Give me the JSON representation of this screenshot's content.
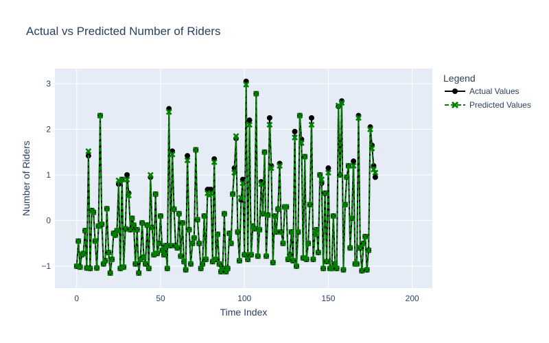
{
  "chart_data": {
    "type": "line",
    "title": "Actual vs Predicted Number of Riders",
    "xlabel": "Time Index",
    "ylabel": "Number of Riders",
    "xlim": [
      -13,
      212
    ],
    "ylim": [
      -1.48,
      3.33
    ],
    "x_ticks": [
      0,
      50,
      100,
      150,
      200
    ],
    "y_ticks": [
      -1,
      0,
      1,
      2,
      3
    ],
    "grid": true,
    "legend": {
      "title": "Legend",
      "position": "right"
    },
    "colors": {
      "plot_bg": "#e5ecf6",
      "grid": "#ffffff",
      "actual": "#000000",
      "predicted": "#008000",
      "text": "#2a3f5f"
    },
    "series": [
      {
        "name": "Actual Values",
        "style": "solid-circle",
        "values": [
          -1.0,
          -0.45,
          -1.02,
          -0.75,
          -0.72,
          -0.22,
          -1.04,
          1.42,
          -1.05,
          0.22,
          0.18,
          -0.45,
          -1.04,
          -0.12,
          2.3,
          -0.08,
          -0.95,
          -0.88,
          0.26,
          -0.7,
          -1.15,
          -0.85,
          -0.28,
          -0.32,
          -0.22,
          0.8,
          -1.05,
          0.9,
          -1.02,
          -0.18,
          1.0,
          0.6,
          -0.2,
          0.05,
          -0.1,
          -0.95,
          -0.2,
          -1.15,
          -0.85,
          -0.05,
          -0.8,
          -0.95,
          -0.1,
          -1.05,
          0.95,
          -0.15,
          -0.75,
          0.58,
          -0.72,
          -0.5,
          0.1,
          -0.65,
          -0.75,
          -0.55,
          -1.05,
          2.45,
          -0.55,
          1.52,
          0.25,
          -0.55,
          -0.6,
          0.15,
          -0.78,
          -0.05,
          -0.9,
          -1.08,
          1.42,
          -0.2,
          -0.95,
          -0.5,
          -0.38,
          1.55,
          0.02,
          -0.5,
          -1.05,
          -0.95,
          0.1,
          -0.85,
          0.68,
          0.68,
          0.68,
          -0.9,
          1.35,
          -0.85,
          -0.3,
          -0.95,
          -1.12,
          -1.05,
          0.15,
          -1.12,
          -1.05,
          -0.28,
          -0.5,
          0.58,
          1.15,
          1.8,
          -0.25,
          -0.88,
          0.45,
          0.9,
          -0.75,
          3.05,
          -0.85,
          2.2,
          -0.75,
          -0.12,
          -0.18,
          2.78,
          -0.78,
          -0.2,
          0.85,
          0.15,
          1.5,
          -0.78,
          0.12,
          2.25,
          1.2,
          -0.92,
          0.1,
          -0.25,
          0.25,
          1.25,
          -0.25,
          -0.5,
          0.3,
          0.3,
          -0.85,
          -0.75,
          -0.25,
          -0.88,
          1.95,
          -1.0,
          -0.25,
          2.3,
          1.78,
          -0.82,
          1.4,
          -0.85,
          -0.5,
          0.35,
          2.25,
          -0.85,
          -0.3,
          -0.2,
          -0.7,
          1.0,
          0.82,
          -1.05,
          0.6,
          -0.9,
          1.15,
          -1.05,
          -1.05,
          0.1,
          -0.95,
          -1.05,
          2.5,
          1.0,
          2.62,
          -1.08,
          0.35,
          0.95,
          1.2,
          -0.6,
          0.05,
          1.3,
          -0.95,
          -0.95,
          2.3,
          -0.6,
          -1.1,
          -0.5,
          -0.35,
          -1.08,
          -0.65,
          2.05,
          1.65,
          1.2,
          0.95
        ]
      },
      {
        "name": "Predicted Values",
        "style": "dashed-x",
        "values": [
          -1.0,
          -0.45,
          -1.02,
          -0.75,
          -0.72,
          -0.22,
          -1.04,
          1.52,
          -1.05,
          0.22,
          0.18,
          -0.45,
          -1.04,
          -0.12,
          2.3,
          -0.08,
          -0.95,
          -0.88,
          0.26,
          -0.7,
          -1.15,
          -0.85,
          -0.28,
          -0.32,
          -0.22,
          0.88,
          -1.05,
          0.9,
          -1.02,
          -0.18,
          0.9,
          0.55,
          -0.2,
          0.05,
          -0.1,
          -0.95,
          -0.2,
          -1.15,
          -0.85,
          -0.05,
          -0.8,
          -0.95,
          -0.1,
          -1.05,
          1.0,
          -0.15,
          -0.75,
          0.58,
          -0.72,
          -0.5,
          0.1,
          -0.65,
          -0.75,
          -0.55,
          -1.05,
          2.38,
          -0.55,
          1.45,
          0.25,
          -0.55,
          -0.6,
          0.15,
          -0.78,
          -0.05,
          -0.9,
          -1.08,
          1.32,
          -0.2,
          -0.95,
          -0.5,
          -0.38,
          1.55,
          0.02,
          -0.5,
          -1.05,
          -0.95,
          0.1,
          -0.85,
          0.6,
          0.55,
          0.6,
          -0.9,
          1.28,
          -0.85,
          -0.3,
          -0.95,
          -1.12,
          -1.05,
          0.15,
          -1.12,
          -1.05,
          -0.28,
          -0.5,
          0.58,
          1.05,
          1.85,
          -0.25,
          -0.88,
          0.5,
          0.82,
          -0.75,
          2.98,
          -0.85,
          2.1,
          -0.75,
          -0.12,
          -0.18,
          2.78,
          -0.78,
          -0.2,
          0.8,
          0.15,
          1.5,
          -0.78,
          0.12,
          2.1,
          1.15,
          -0.92,
          0.1,
          -0.25,
          0.25,
          1.2,
          -0.25,
          -0.5,
          0.3,
          0.3,
          -0.85,
          -0.75,
          -0.25,
          -0.88,
          1.82,
          -1.0,
          -0.25,
          2.3,
          1.7,
          -0.82,
          1.4,
          -0.85,
          -0.5,
          0.35,
          2.1,
          -0.85,
          -0.3,
          -0.2,
          -0.7,
          1.0,
          0.9,
          -1.05,
          0.6,
          -0.9,
          1.05,
          -1.05,
          -1.05,
          0.1,
          -0.95,
          -1.05,
          2.52,
          1.0,
          2.58,
          -1.08,
          0.35,
          0.95,
          1.2,
          -0.6,
          0.05,
          1.2,
          -0.95,
          -0.95,
          2.25,
          -0.6,
          -1.1,
          -0.5,
          -0.35,
          -1.08,
          -0.65,
          2.0,
          1.58,
          1.12,
          1.05
        ]
      }
    ]
  }
}
